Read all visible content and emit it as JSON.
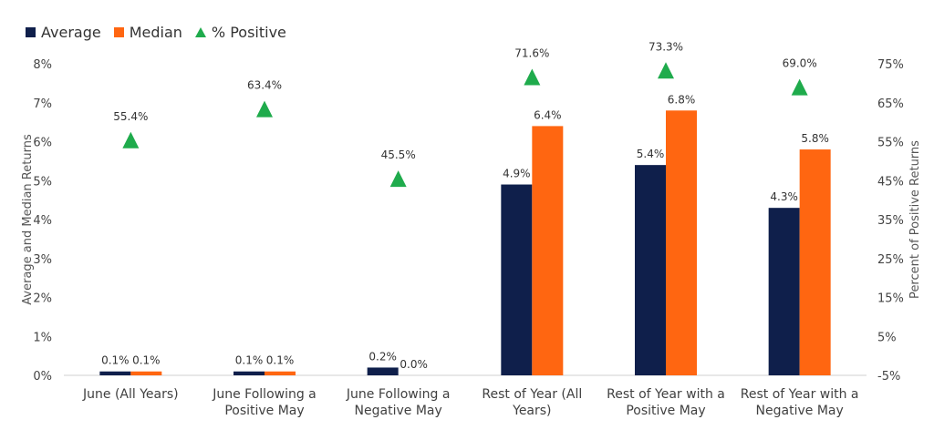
{
  "legend": {
    "average": "Average",
    "median": "Median",
    "positive": "% Positive"
  },
  "colors": {
    "average": "#0f1f4b",
    "median": "#ff6611",
    "positive": "#1fab4c"
  },
  "chart_data": {
    "type": "bar",
    "categories": [
      [
        "June (All Years)"
      ],
      [
        "June Following a",
        "Positive May"
      ],
      [
        "June Following a",
        "Negative May"
      ],
      [
        "Rest of Year (All",
        "Years)"
      ],
      [
        "Rest of Year with a",
        "Positive May"
      ],
      [
        "Rest of Year with a",
        "Negative May"
      ]
    ],
    "series": [
      {
        "name": "Average",
        "axis": "left",
        "kind": "bar",
        "values": [
          0.1,
          0.1,
          0.2,
          4.9,
          5.4,
          4.3
        ],
        "labels": [
          "0.1%",
          "0.1%",
          "0.2%",
          "4.9%",
          "5.4%",
          "4.3%"
        ]
      },
      {
        "name": "Median",
        "axis": "left",
        "kind": "bar",
        "values": [
          0.1,
          0.1,
          0.0,
          6.4,
          6.8,
          5.8
        ],
        "labels": [
          "0.1%",
          "0.1%",
          "0.0%",
          "6.4%",
          "6.8%",
          "5.8%"
        ]
      },
      {
        "name": "% Positive",
        "axis": "right",
        "kind": "marker",
        "values": [
          55.4,
          63.4,
          45.5,
          71.6,
          73.3,
          69.0
        ],
        "labels": [
          "55.4%",
          "63.4%",
          "45.5%",
          "71.6%",
          "73.3%",
          "69.0%"
        ]
      }
    ],
    "y_left": {
      "label": "Average and Median Returns",
      "range": [
        0,
        8
      ],
      "ticks": [
        "0%",
        "1%",
        "2%",
        "3%",
        "4%",
        "5%",
        "6%",
        "7%",
        "8%"
      ]
    },
    "y_right": {
      "label": "Percent of Positive Returns",
      "range": [
        -5,
        75
      ],
      "ticks": [
        "-5%",
        "5%",
        "15%",
        "25%",
        "35%",
        "45%",
        "55%",
        "65%",
        "75%"
      ]
    },
    "grid": false,
    "legend_position": "top-left"
  }
}
